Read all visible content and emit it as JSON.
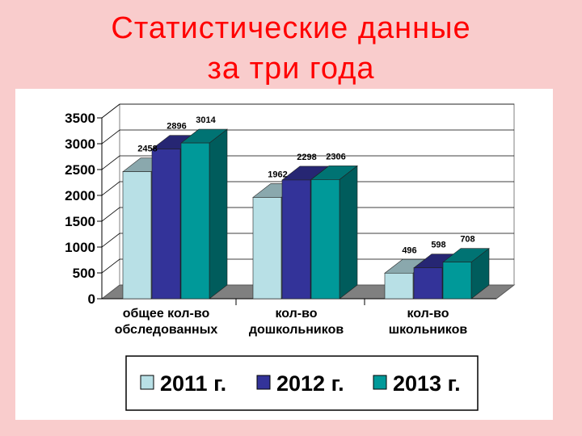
{
  "slide": {
    "title_line1": "Статистические данные",
    "title_line2": "за три года"
  },
  "colors": {
    "background": "#f9cccc",
    "title": "#ff0000",
    "panel": "#ffffff",
    "floor": "#808080"
  },
  "chart_data": {
    "type": "bar",
    "style": "3d-clustered",
    "categories": [
      [
        "общее кол-во",
        "обследованных"
      ],
      [
        "кол-во",
        "дошкольников"
      ],
      [
        "кол-во",
        "школьников"
      ]
    ],
    "series": [
      {
        "name": "2011 г.",
        "values": [
          2458,
          1962,
          496
        ],
        "color": "#b8e0e6"
      },
      {
        "name": "2012 г.",
        "values": [
          2896,
          2298,
          598
        ],
        "color": "#333399"
      },
      {
        "name": "2013 г.",
        "values": [
          3014,
          2306,
          708
        ],
        "color": "#009999"
      }
    ],
    "yticks": [
      0,
      500,
      1000,
      1500,
      2000,
      2500,
      3000,
      3500
    ],
    "ylim": [
      0,
      3500
    ],
    "grid": true,
    "legend": "bottom"
  }
}
